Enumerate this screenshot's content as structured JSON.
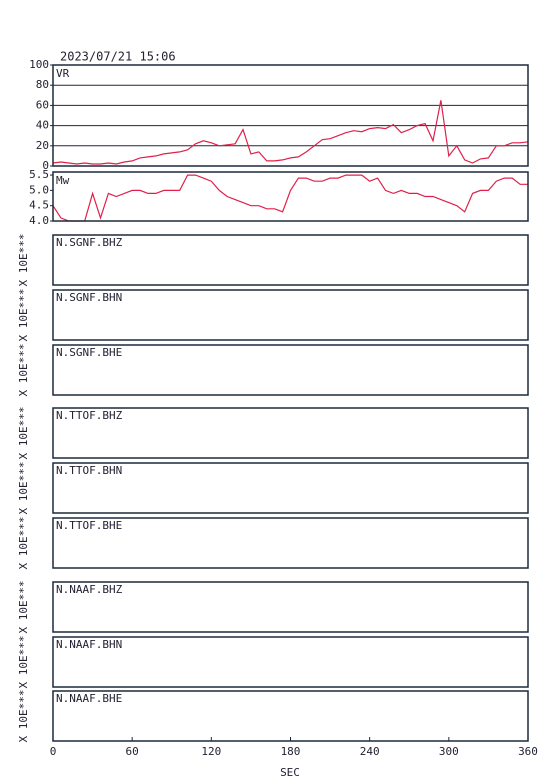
{
  "header": {
    "timestamp": "2023/07/21 15:06"
  },
  "x_axis": {
    "xlim": [
      0,
      360
    ],
    "xticks": [
      0,
      60,
      120,
      180,
      240,
      300,
      360
    ],
    "label": "SEC"
  },
  "chart_data": [
    {
      "type": "line",
      "title": "VR",
      "color": "#e0204a",
      "grid": true,
      "x": [
        0,
        6,
        12,
        18,
        24,
        30,
        36,
        42,
        48,
        54,
        60,
        66,
        72,
        78,
        84,
        90,
        96,
        102,
        108,
        114,
        120,
        126,
        132,
        138,
        144,
        150,
        156,
        162,
        168,
        174,
        180,
        186,
        192,
        198,
        204,
        210,
        216,
        222,
        228,
        234,
        240,
        246,
        252,
        258,
        264,
        270,
        276,
        282,
        288,
        294,
        300,
        306,
        312,
        318,
        324,
        330,
        336,
        342,
        348,
        354,
        360
      ],
      "values": [
        3,
        4,
        3,
        2,
        3,
        2,
        2,
        3,
        2,
        4,
        5,
        8,
        9,
        10,
        12,
        13,
        14,
        16,
        22,
        25,
        23,
        20,
        21,
        22,
        36,
        12,
        14,
        5,
        5,
        6,
        8,
        9,
        14,
        20,
        26,
        27,
        30,
        33,
        35,
        34,
        37,
        38,
        37,
        41,
        33,
        36,
        40,
        42,
        25,
        65,
        10,
        20,
        6,
        3,
        7,
        8,
        20,
        20,
        23,
        23,
        24
      ],
      "ylim": [
        0,
        100
      ],
      "yticks": [
        0,
        20,
        40,
        60,
        80,
        100
      ]
    },
    {
      "type": "line",
      "title": "Mw",
      "color": "#e0204a",
      "grid": false,
      "x": [
        0,
        6,
        12,
        18,
        24,
        30,
        36,
        42,
        48,
        54,
        60,
        66,
        72,
        78,
        84,
        90,
        96,
        102,
        108,
        114,
        120,
        126,
        132,
        138,
        144,
        150,
        156,
        162,
        168,
        174,
        180,
        186,
        192,
        198,
        204,
        210,
        216,
        222,
        228,
        234,
        240,
        246,
        252,
        258,
        264,
        270,
        276,
        282,
        288,
        294,
        300,
        306,
        312,
        318,
        324,
        330,
        336,
        342,
        348,
        354,
        360
      ],
      "values": [
        4.5,
        4.1,
        4.0,
        4.0,
        4.0,
        4.9,
        4.1,
        4.9,
        4.8,
        4.9,
        5.0,
        5.0,
        4.9,
        4.9,
        5.0,
        5.0,
        5.0,
        5.5,
        5.5,
        5.4,
        5.3,
        5.0,
        4.8,
        4.7,
        4.6,
        4.5,
        4.5,
        4.4,
        4.4,
        4.3,
        5.0,
        5.4,
        5.4,
        5.3,
        5.3,
        5.4,
        5.4,
        5.5,
        5.5,
        5.5,
        5.3,
        5.4,
        5.0,
        4.9,
        5.0,
        4.9,
        4.9,
        4.8,
        4.8,
        4.7,
        4.6,
        4.5,
        4.3,
        4.9,
        5.0,
        5.0,
        5.3,
        5.4,
        5.4,
        5.2,
        5.2
      ],
      "ylim": [
        4.0,
        5.6
      ],
      "yticks": [
        {
          "value": 4,
          "label": "4.0"
        },
        4.5,
        {
          "value": 5,
          "label": "5.0"
        },
        5.5
      ]
    }
  ],
  "traces": [
    {
      "label": "N.SGNF.BHZ",
      "scale_label": "X 10E***"
    },
    {
      "label": "N.SGNF.BHN",
      "scale_label": "X 10E***"
    },
    {
      "label": "N.SGNF.BHE",
      "scale_label": "X 10E***"
    },
    {
      "label": "N.TTOF.BHZ",
      "scale_label": "X 10E***"
    },
    {
      "label": "N.TTOF.BHN",
      "scale_label": "X 10E***"
    },
    {
      "label": "N.TTOF.BHE",
      "scale_label": "X 10E***"
    },
    {
      "label": "N.NAAF.BHZ",
      "scale_label": "X 10E***"
    },
    {
      "label": "N.NAAF.BHN",
      "scale_label": "X 10E***"
    },
    {
      "label": "N.NAAF.BHE",
      "scale_label": "X 10E***"
    }
  ]
}
